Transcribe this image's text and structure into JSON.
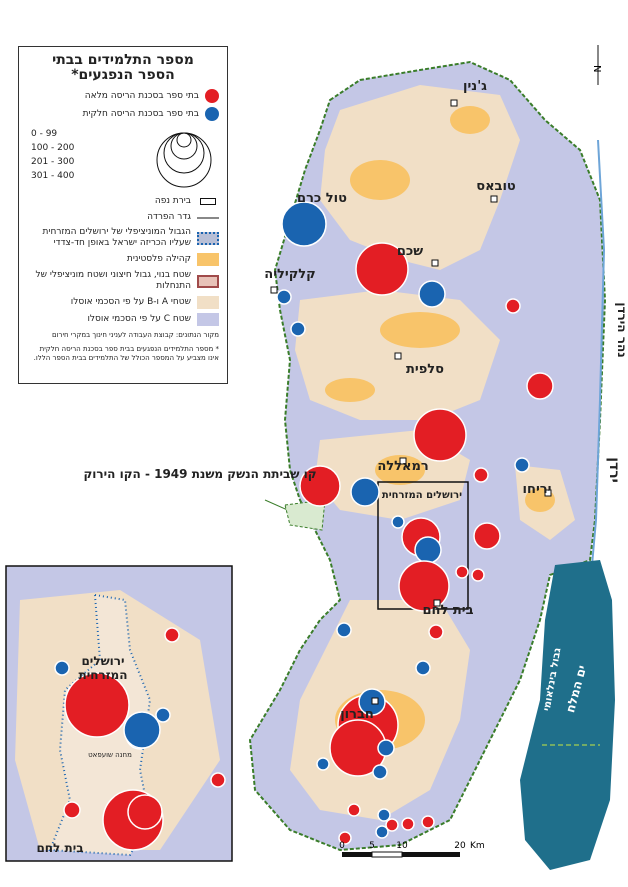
{
  "legend": {
    "title": [
      "מספר התלמידים בבתי",
      "הספר הנפגעים*"
    ],
    "full_demolition": "בתי ספר בסכנת הריסה מלאה",
    "partial_demolition": "בתי ספר בסכנת הריסה חלקית",
    "sizes": [
      "0 - 99",
      "100 - 200",
      "201 - 300",
      "301 - 400"
    ],
    "items": [
      "בירת נפה",
      "גדר הפרדה",
      "הגבול המוניציפלי של ירושלים המזרחית שעליו הכריזה ישראל באופן חד-צדדי",
      "קהילה פלסטינית",
      "שטח בנוי, גבול חיצוני ושטח מוניציפלי של התנחלות",
      "שטחי A ו-B על פי הסכמי אוסלו",
      "שטח C על פי הסכמי אוסלו"
    ],
    "source": "מקור הנתונים: קבוצת העבודה לעניני חינוך במקרי חירום",
    "note": "* מספר התלמידים הנפגעים בבית ספר בסכנת הריסה חלקית אינו מצביע על המספר הכולל של התלמידים בבית הספר הללו."
  },
  "cities": [
    "ג'נין",
    "טובאס",
    "טול כרם",
    "שכם",
    "קלקיליה",
    "סלפית",
    "רמאללה",
    "יריחו",
    "ירושלים המזרחית",
    "בית לחם",
    "חברון"
  ],
  "regions": [
    "נהר הירדן",
    "ירדן",
    "ים המלח",
    "גבול בינלאומי"
  ],
  "green_line": "קו שביתת הנשק משנת 1949 - הקו הירוק",
  "inset": {
    "east_jerusalem": [
      "ירושלים",
      "המזרחית"
    ],
    "bethlehem": "בית לחם",
    "camp": "מחנה שועפאט"
  },
  "scale": [
    "0",
    "5",
    "10",
    "20",
    "Km"
  ],
  "north": "N"
}
